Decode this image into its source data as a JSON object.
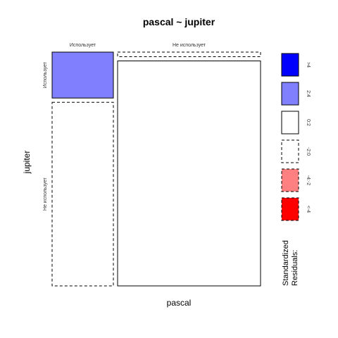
{
  "chart_data": {
    "type": "mosaic",
    "title": "pascal ~ jupiter",
    "xlabel": "pascal",
    "ylabel": "jupiter",
    "x_categories": [
      "Использует",
      "Не использует"
    ],
    "y_categories": [
      "Использует",
      "Не использует"
    ],
    "cells": [
      {
        "x": "Использует",
        "y": "Использует",
        "proportion_x": 0.3,
        "proportion_y_within_x": 0.2,
        "residual_class": "2:4"
      },
      {
        "x": "Использует",
        "y": "Не использует",
        "proportion_x": 0.3,
        "proportion_y_within_x": 0.8,
        "residual_class": "-2:0"
      },
      {
        "x": "Не использует",
        "y": "Использует",
        "proportion_x": 0.7,
        "proportion_y_within_x": 0.02,
        "residual_class": "-2:0"
      },
      {
        "x": "Не использует",
        "y": "Не использует",
        "proportion_x": 0.7,
        "proportion_y_within_x": 0.98,
        "residual_class": "0:2"
      }
    ],
    "legend": {
      "title_lines": [
        "Standardized",
        "Residuals:"
      ],
      "entries": [
        {
          "label": ">4",
          "fill": "#0000ff",
          "dashed": false
        },
        {
          "label": "2:4",
          "fill": "#8080ff",
          "dashed": false
        },
        {
          "label": "0:2",
          "fill": "#ffffff",
          "dashed": false
        },
        {
          "label": "-2:0",
          "fill": "#ffffff",
          "dashed": true
        },
        {
          "label": "-4:-2",
          "fill": "#ff8080",
          "dashed": true
        },
        {
          "label": "<-4",
          "fill": "#ff0000",
          "dashed": true
        }
      ]
    }
  }
}
